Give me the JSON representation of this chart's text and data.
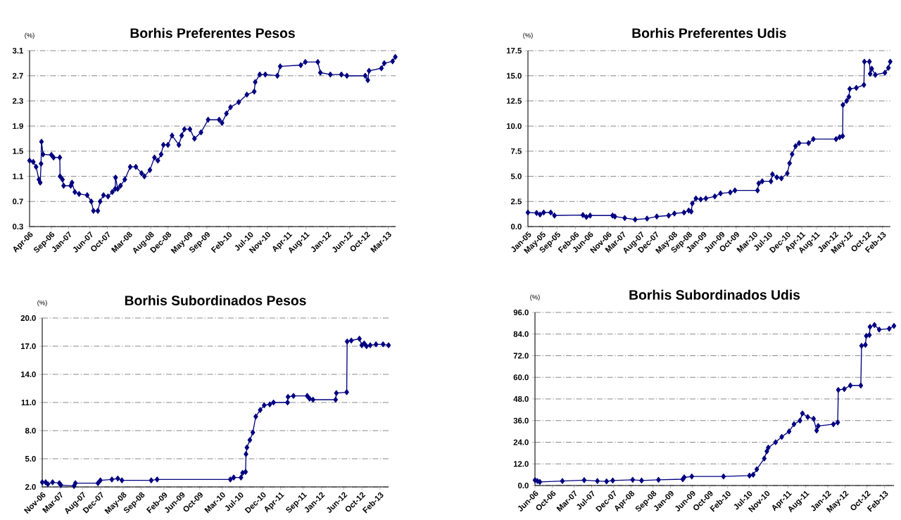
{
  "chart_data": [
    {
      "type": "line",
      "title": "Borhis Preferentes Pesos",
      "ylabel": "(%)",
      "color": "#000080",
      "marker": "diamond",
      "grid": "y",
      "x": [
        "2006-04-01",
        "2006-04-27",
        "2006-05-17",
        "2006-06-06",
        "2006-06-15",
        "2006-06-21",
        "2006-06-24",
        "2006-07-05",
        "2006-09-02",
        "2006-09-17",
        "2006-10-31",
        "2006-11-02",
        "2006-11-19",
        "2006-11-27",
        "2007-01-16",
        "2007-01-25",
        "2007-02-14",
        "2007-03-16",
        "2007-05-12",
        "2007-06-10",
        "2007-06-25",
        "2007-07-26",
        "2007-08-11",
        "2007-09-04",
        "2007-10-06",
        "2007-11-05",
        "2007-11-25",
        "2007-11-28",
        "2007-12-13",
        "2008-01-02",
        "2008-02-01",
        "2008-03-10",
        "2008-04-19",
        "2008-05-29",
        "2008-06-18",
        "2008-07-27",
        "2008-08-28",
        "2008-09-21",
        "2008-10-14",
        "2008-10-30",
        "2008-12-01",
        "2008-12-30",
        "2009-02-16",
        "2009-03-08",
        "2009-03-27",
        "2009-05-05",
        "2009-06-06",
        "2009-07-22",
        "2009-09-10",
        "2009-11-27",
        "2009-12-17",
        "2010-01-17",
        "2010-02-15",
        "2010-04-14",
        "2010-06-10",
        "2010-08-01",
        "2010-08-08",
        "2010-09-09",
        "2010-10-18",
        "2011-01-11",
        "2011-01-31",
        "2011-06-25",
        "2011-07-27",
        "2011-10-23",
        "2011-11-10",
        "2012-01-19",
        "2012-04-06",
        "2012-05-15",
        "2012-09-21",
        "2012-10-09",
        "2012-10-18",
        "2013-01-13",
        "2013-02-02",
        "2013-04-02",
        "2013-04-21"
      ],
      "values": [
        1.35,
        1.33,
        1.25,
        1.05,
        1.0,
        1.3,
        1.65,
        1.45,
        1.44,
        1.4,
        1.4,
        1.1,
        1.05,
        0.95,
        0.95,
        1.0,
        0.85,
        0.82,
        0.8,
        0.7,
        0.55,
        0.55,
        0.7,
        0.8,
        0.78,
        0.85,
        0.9,
        1.08,
        0.9,
        0.95,
        1.05,
        1.25,
        1.25,
        1.15,
        1.1,
        1.2,
        1.4,
        1.35,
        1.45,
        1.6,
        1.6,
        1.75,
        1.6,
        1.75,
        1.85,
        1.85,
        1.7,
        1.8,
        2.0,
        2.0,
        1.95,
        2.1,
        2.2,
        2.28,
        2.4,
        2.45,
        2.6,
        2.72,
        2.72,
        2.7,
        2.85,
        2.87,
        2.92,
        2.92,
        2.75,
        2.72,
        2.72,
        2.7,
        2.7,
        2.63,
        2.78,
        2.82,
        2.9,
        2.93,
        3.0
      ],
      "xlim": [
        "2006-04-01",
        "2013-04-23"
      ],
      "xticks": [
        {
          "value": "2006-04",
          "label": "Apr-06"
        },
        {
          "value": "2006-09",
          "label": "Sep-06"
        },
        {
          "value": "2007-01",
          "label": "Jan-07"
        },
        {
          "value": "2007-06",
          "label": "Jun-07"
        },
        {
          "value": "2007-10",
          "label": "Oct-07"
        },
        {
          "value": "2008-03",
          "label": "Mar-08"
        },
        {
          "value": "2008-08",
          "label": "Aug-08"
        },
        {
          "value": "2008-12",
          "label": "Dec-08"
        },
        {
          "value": "2009-05",
          "label": "May-09"
        },
        {
          "value": "2009-09",
          "label": "Sep-09"
        },
        {
          "value": "2010-02",
          "label": "Feb-10"
        },
        {
          "value": "2010-07",
          "label": "Jul-10"
        },
        {
          "value": "2010-11",
          "label": "Nov-10"
        },
        {
          "value": "2011-04",
          "label": "Apr-11"
        },
        {
          "value": "2011-08",
          "label": "Aug-11"
        },
        {
          "value": "2012-01",
          "label": "Jan-12"
        },
        {
          "value": "2012-06",
          "label": "Jun-12"
        },
        {
          "value": "2012-10",
          "label": "Oct-12"
        },
        {
          "value": "2013-03",
          "label": "Mar-13"
        }
      ],
      "ylim": [
        0.3,
        3.1
      ],
      "yticks": [
        0.3,
        0.7,
        1.1,
        1.5,
        1.9,
        2.3,
        2.7,
        3.1
      ]
    },
    {
      "type": "line",
      "title": "Borhis Preferentes Udis",
      "ylabel": "(%)",
      "color": "#000080",
      "marker": "diamond",
      "grid": "y",
      "x": [
        "2005-01-01",
        "2005-03-14",
        "2005-04-12",
        "2005-05-12",
        "2005-07-10",
        "2005-08-10",
        "2006-04-04",
        "2006-05-03",
        "2006-06-03",
        "2006-12-07",
        "2006-12-26",
        "2007-03-18",
        "2007-06-13",
        "2007-09-20",
        "2007-12-10",
        "2008-03-18",
        "2008-05-05",
        "2008-07-24",
        "2008-09-01",
        "2008-09-22",
        "2008-10-01",
        "2008-10-31",
        "2008-12-10",
        "2009-01-22",
        "2009-04-06",
        "2009-05-24",
        "2009-08-13",
        "2009-09-21",
        "2010-03-28",
        "2010-04-07",
        "2010-05-06",
        "2010-07-18",
        "2010-07-30",
        "2010-09-05",
        "2010-10-13",
        "2010-12-01",
        "2010-12-20",
        "2011-01-10",
        "2011-02-08",
        "2011-03-09",
        "2011-05-27",
        "2011-07-06",
        "2012-01-11",
        "2012-02-10",
        "2012-03-06",
        "2012-03-08",
        "2012-04-08",
        "2012-04-27",
        "2012-05-04",
        "2012-06-28",
        "2012-08-30",
        "2012-09-03",
        "2012-10-15",
        "2012-10-21",
        "2012-11-03",
        "2012-12-03",
        "2013-02-21",
        "2013-03-22",
        "2013-04-06"
      ],
      "values": [
        1.4,
        1.35,
        1.2,
        1.4,
        1.4,
        1.1,
        1.15,
        0.95,
        1.1,
        1.1,
        1.0,
        0.85,
        0.7,
        0.8,
        1.0,
        1.1,
        1.3,
        1.4,
        1.6,
        1.5,
        2.3,
        2.8,
        2.7,
        2.8,
        3.0,
        3.3,
        3.4,
        3.6,
        3.6,
        4.3,
        4.5,
        4.5,
        5.2,
        4.9,
        4.8,
        5.3,
        6.3,
        7.2,
        8.0,
        8.3,
        8.3,
        8.7,
        8.7,
        8.9,
        9.0,
        12.1,
        12.5,
        12.9,
        13.7,
        13.8,
        14.1,
        16.4,
        16.4,
        15.2,
        15.7,
        15.1,
        15.3,
        15.8,
        16.4
      ],
      "xlim": [
        "2005-01-01",
        "2013-04-06"
      ],
      "xticks": [
        {
          "value": "2005-01",
          "label": "Jan-05"
        },
        {
          "value": "2005-05",
          "label": "May-05"
        },
        {
          "value": "2005-09",
          "label": "Sep-05"
        },
        {
          "value": "2006-02",
          "label": "Feb-06"
        },
        {
          "value": "2006-06",
          "label": "Jun-06"
        },
        {
          "value": "2006-11",
          "label": "Nov-06"
        },
        {
          "value": "2007-03",
          "label": "Mar-07"
        },
        {
          "value": "2007-08",
          "label": "Aug-07"
        },
        {
          "value": "2007-12",
          "label": "Dec-07"
        },
        {
          "value": "2008-05",
          "label": "May-08"
        },
        {
          "value": "2008-09",
          "label": "Sep-08"
        },
        {
          "value": "2009-01",
          "label": "Jan-09"
        },
        {
          "value": "2009-06",
          "label": "Jun-09"
        },
        {
          "value": "2009-10",
          "label": "Oct-09"
        },
        {
          "value": "2010-03",
          "label": "Mar-10"
        },
        {
          "value": "2010-07",
          "label": "Jul-10"
        },
        {
          "value": "2010-12",
          "label": "Dec-10"
        },
        {
          "value": "2011-04",
          "label": "Apr-11"
        },
        {
          "value": "2011-08",
          "label": "Aug-11"
        },
        {
          "value": "2012-01",
          "label": "Jan-12"
        },
        {
          "value": "2012-05",
          "label": "May-12"
        },
        {
          "value": "2012-10",
          "label": "Oct-12"
        },
        {
          "value": "2013-02",
          "label": "Feb-13"
        }
      ],
      "ylim": [
        0,
        17.5
      ],
      "yticks": [
        {
          "value": 0,
          "label": "0.0"
        },
        {
          "value": 2.5,
          "label": "2.5"
        },
        {
          "value": 5,
          "label": "5.0"
        },
        {
          "value": 7.5,
          "label": "7.5"
        },
        {
          "value": 10,
          "label": "10.0"
        },
        {
          "value": 12.5,
          "label": "12.5"
        },
        {
          "value": 15,
          "label": "15.0"
        },
        {
          "value": 17.5,
          "label": "17.5"
        }
      ]
    },
    {
      "type": "line",
      "title": "Borhis Subordinados Pesos",
      "ylabel": "(%)",
      "color": "#000080",
      "marker": "diamond",
      "grid": "y",
      "x": [
        "2006-11-01",
        "2006-11-24",
        "2006-12-09",
        "2007-01-10",
        "2007-02-25",
        "2007-03-07",
        "2007-06-04",
        "2007-06-13",
        "2007-11-13",
        "2007-11-29",
        "2008-02-15",
        "2008-03-26",
        "2008-04-23",
        "2008-11-07",
        "2008-12-17",
        "2010-04-26",
        "2010-05-19",
        "2010-07-07",
        "2010-07-18",
        "2010-08-07",
        "2010-08-10",
        "2010-08-16",
        "2010-09-05",
        "2010-09-25",
        "2010-10-15",
        "2010-11-14",
        "2010-12-11",
        "2011-01-18",
        "2011-02-12",
        "2011-05-18",
        "2011-05-21",
        "2011-06-27",
        "2011-09-28",
        "2011-10-14",
        "2011-11-06",
        "2012-04-07",
        "2012-04-12",
        "2012-06-21",
        "2012-06-24",
        "2012-07-22",
        "2012-09-15",
        "2012-10-01",
        "2012-10-17",
        "2012-11-02",
        "2012-11-27",
        "2013-01-05",
        "2013-02-22",
        "2013-03-31"
      ],
      "values": [
        2.5,
        2.5,
        2.3,
        2.5,
        2.4,
        2.2,
        2.1,
        2.4,
        2.4,
        2.7,
        2.8,
        2.9,
        2.7,
        2.7,
        2.8,
        2.8,
        3.0,
        3.0,
        3.5,
        3.6,
        5.5,
        6.2,
        7.0,
        7.8,
        9.5,
        10.2,
        10.7,
        10.8,
        11.0,
        11.0,
        11.6,
        11.7,
        11.7,
        11.4,
        11.3,
        11.3,
        12.0,
        12.1,
        17.5,
        17.6,
        17.8,
        17.1,
        17.3,
        17.0,
        17.1,
        17.2,
        17.2,
        17.1
      ],
      "xlim": [
        "2006-11-01",
        "2013-03-31"
      ],
      "xticks": [
        {
          "value": "2006-11",
          "label": "Nov-06"
        },
        {
          "value": "2007-03",
          "label": "Mar-07"
        },
        {
          "value": "2007-08",
          "label": "Aug-07"
        },
        {
          "value": "2007-12",
          "label": "Dec-07"
        },
        {
          "value": "2008-05",
          "label": "May-08"
        },
        {
          "value": "2008-09",
          "label": "Sep-08"
        },
        {
          "value": "2009-02",
          "label": "Feb-09"
        },
        {
          "value": "2009-06",
          "label": "Jun-09"
        },
        {
          "value": "2009-10",
          "label": "Oct-09"
        },
        {
          "value": "2010-03",
          "label": "Mar-10"
        },
        {
          "value": "2010-07",
          "label": "Jul-10"
        },
        {
          "value": "2010-12",
          "label": "Dec-10"
        },
        {
          "value": "2011-04",
          "label": "Apr-11"
        },
        {
          "value": "2011-09",
          "label": "Sep-11"
        },
        {
          "value": "2012-01",
          "label": "Jan-12"
        },
        {
          "value": "2012-06",
          "label": "Jun-12"
        },
        {
          "value": "2012-10",
          "label": "Oct-12"
        },
        {
          "value": "2013-02",
          "label": "Feb-13"
        }
      ],
      "ylim": [
        2,
        20
      ],
      "yticks": [
        {
          "value": 2,
          "label": "2.0"
        },
        {
          "value": 5,
          "label": "5.0"
        },
        {
          "value": 8,
          "label": "8.0"
        },
        {
          "value": 11,
          "label": "11.0"
        },
        {
          "value": 14,
          "label": "14.0"
        },
        {
          "value": 17,
          "label": "17.0"
        },
        {
          "value": 20,
          "label": "20.0"
        }
      ]
    },
    {
      "type": "line",
      "title": "Borhis Subordinados Udis",
      "ylabel": "(%)",
      "color": "#000080",
      "marker": "diamond",
      "grid": "y",
      "x": [
        "2006-06-01",
        "2006-06-18",
        "2006-07-05",
        "2006-12-09",
        "2007-05-10",
        "2007-08-10",
        "2007-10-13",
        "2007-11-25",
        "2008-04-12",
        "2008-06-13",
        "2008-10-09",
        "2009-03-27",
        "2009-04-06",
        "2009-05-29",
        "2010-01-05",
        "2010-07-05",
        "2010-07-31",
        "2010-08-25",
        "2010-10-16",
        "2010-11-03",
        "2010-11-13",
        "2011-01-03",
        "2011-02-15",
        "2011-04-07",
        "2011-05-11",
        "2011-06-22",
        "2011-07-09",
        "2011-08-15",
        "2011-09-25",
        "2011-10-16",
        "2011-10-27",
        "2012-02-10",
        "2012-03-11",
        "2012-03-15",
        "2012-04-26",
        "2012-06-07",
        "2012-08-19",
        "2012-08-24",
        "2012-09-20",
        "2012-09-26",
        "2012-10-18",
        "2012-10-22",
        "2012-11-22",
        "2012-12-25",
        "2013-03-05",
        "2013-04-07"
      ],
      "values": [
        3.0,
        2.5,
        2.0,
        2.5,
        3.0,
        2.5,
        2.3,
        2.8,
        3.2,
        2.8,
        3.2,
        3.5,
        4.5,
        5.0,
        5.0,
        5.5,
        6.0,
        9.0,
        15.0,
        19.0,
        21.0,
        24.0,
        27.0,
        30.0,
        34.0,
        36.0,
        40.0,
        38.0,
        37.0,
        30.5,
        33.0,
        34.0,
        35.0,
        53.0,
        53.5,
        55.5,
        55.5,
        77.5,
        78.0,
        83.0,
        83.5,
        88.0,
        89.0,
        86.5,
        87.0,
        88.5
      ],
      "xlim": [
        "2006-06-01",
        "2013-04-07"
      ],
      "xticks": [
        {
          "value": "2006-06",
          "label": "Jun-06"
        },
        {
          "value": "2006-10",
          "label": "Oct-06"
        },
        {
          "value": "2007-03",
          "label": "Mar-07"
        },
        {
          "value": "2007-07",
          "label": "Jul-07"
        },
        {
          "value": "2007-12",
          "label": "Dec-07"
        },
        {
          "value": "2008-04",
          "label": "Apr-08"
        },
        {
          "value": "2008-09",
          "label": "Sep-08"
        },
        {
          "value": "2009-01",
          "label": "Jan-09"
        },
        {
          "value": "2009-06",
          "label": "Jun-09"
        },
        {
          "value": "2009-10",
          "label": "Oct-09"
        },
        {
          "value": "2010-02",
          "label": "Feb-10"
        },
        {
          "value": "2010-07",
          "label": "Jul-10"
        },
        {
          "value": "2010-11",
          "label": "Nov-10"
        },
        {
          "value": "2011-04",
          "label": "Apr-11"
        },
        {
          "value": "2011-08",
          "label": "Aug-11"
        },
        {
          "value": "2012-01",
          "label": "Jan-12"
        },
        {
          "value": "2012-05",
          "label": "May-12"
        },
        {
          "value": "2012-10",
          "label": "Oct-12"
        },
        {
          "value": "2013-02",
          "label": "Feb-13"
        }
      ],
      "ylim": [
        0,
        96
      ],
      "yticks": [
        {
          "value": 0,
          "label": "0.0"
        },
        {
          "value": 12,
          "label": "12.0"
        },
        {
          "value": 24,
          "label": "24.0"
        },
        {
          "value": 36,
          "label": "36.0"
        },
        {
          "value": 48,
          "label": "48.0"
        },
        {
          "value": 60,
          "label": "60.0"
        },
        {
          "value": 72,
          "label": "72.0"
        },
        {
          "value": 84,
          "label": "84.0"
        },
        {
          "value": 96,
          "label": "96.0"
        }
      ]
    }
  ]
}
